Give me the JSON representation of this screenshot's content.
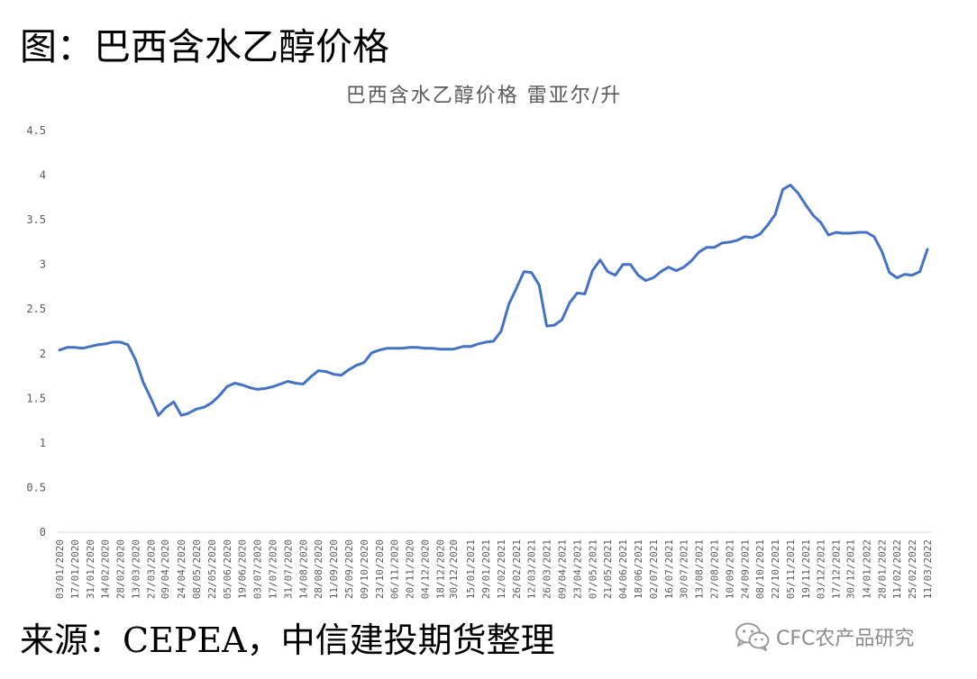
{
  "heading": "图：巴西含水乙醇价格",
  "source": "来源：CEPEA，中信建投期货整理",
  "watermark": {
    "text": "CFC农产品研究",
    "icon": "wechat-icon"
  },
  "colors": {
    "line": "#4472C4",
    "axis": "#D9D9D9",
    "text": "#595959"
  },
  "chart_data": {
    "type": "line",
    "title": "巴西含水乙醇价格 雷亚尔/升",
    "ylim": [
      0,
      4.5
    ],
    "yticks": [
      "0",
      "0.5",
      "1",
      "1.5",
      "2",
      "2.5",
      "3",
      "3.5",
      "4",
      "4.5"
    ],
    "grid": false,
    "xticks": [
      "03/01/2020",
      "17/01/2020",
      "31/01/2020",
      "14/02/2020",
      "28/02/2020",
      "13/03/2020",
      "27/03/2020",
      "09/04/2020",
      "24/04/2020",
      "08/05/2020",
      "22/05/2020",
      "05/06/2020",
      "19/06/2020",
      "03/07/2020",
      "17/07/2020",
      "31/07/2020",
      "14/08/2020",
      "28/08/2020",
      "11/09/2020",
      "25/09/2020",
      "09/10/2020",
      "23/10/2020",
      "06/11/2020",
      "20/11/2020",
      "04/12/2020",
      "18/12/2020",
      "30/12/2020",
      "15/01/2021",
      "29/01/2021",
      "12/02/2021",
      "26/02/2021",
      "12/03/2021",
      "26/03/2021",
      "09/04/2021",
      "23/04/2021",
      "07/05/2021",
      "21/05/2021",
      "04/06/2021",
      "18/06/2021",
      "02/07/2021",
      "16/07/2021",
      "30/07/2021",
      "13/08/2021",
      "27/08/2021",
      "10/09/2021",
      "24/09/2021",
      "08/10/2021",
      "22/10/2021",
      "05/11/2021",
      "19/11/2021",
      "03/12/2021",
      "17/12/2021",
      "30/12/2021",
      "14/01/2022",
      "28/01/2022",
      "11/02/2022",
      "25/02/2022",
      "11/03/2022"
    ],
    "series": [
      {
        "x": [
          "03/01/2020",
          "10/01/2020",
          "17/01/2020",
          "24/01/2020",
          "31/01/2020",
          "07/02/2020",
          "14/02/2020",
          "21/02/2020",
          "28/02/2020",
          "06/03/2020",
          "13/03/2020",
          "20/03/2020",
          "27/03/2020",
          "03/04/2020",
          "09/04/2020",
          "17/04/2020",
          "24/04/2020",
          "30/04/2020",
          "08/05/2020",
          "15/05/2020",
          "22/05/2020",
          "29/05/2020",
          "05/06/2020",
          "12/06/2020",
          "19/06/2020",
          "26/06/2020",
          "03/07/2020",
          "10/07/2020",
          "17/07/2020",
          "24/07/2020",
          "31/07/2020",
          "07/08/2020",
          "14/08/2020",
          "21/08/2020",
          "28/08/2020",
          "04/09/2020",
          "11/09/2020",
          "18/09/2020",
          "25/09/2020",
          "02/10/2020",
          "09/10/2020",
          "16/10/2020",
          "23/10/2020",
          "30/10/2020",
          "06/11/2020",
          "13/11/2020",
          "20/11/2020",
          "27/11/2020",
          "04/12/2020",
          "11/12/2020",
          "18/12/2020",
          "24/12/2020",
          "30/12/2020",
          "08/01/2021",
          "15/01/2021",
          "22/01/2021",
          "29/01/2021",
          "05/02/2021",
          "12/02/2021",
          "19/02/2021",
          "26/02/2021",
          "05/03/2021",
          "12/03/2021",
          "19/03/2021",
          "26/03/2021",
          "02/04/2021",
          "09/04/2021",
          "16/04/2021",
          "23/04/2021",
          "30/04/2021",
          "07/05/2021",
          "14/05/2021",
          "21/05/2021",
          "28/05/2021",
          "04/06/2021",
          "11/06/2021",
          "18/06/2021",
          "25/06/2021",
          "02/07/2021",
          "09/07/2021",
          "16/07/2021",
          "23/07/2021",
          "30/07/2021",
          "06/08/2021",
          "13/08/2021",
          "20/08/2021",
          "27/08/2021",
          "03/09/2021",
          "10/09/2021",
          "17/09/2021",
          "24/09/2021",
          "01/10/2021",
          "08/10/2021",
          "15/10/2021",
          "22/10/2021",
          "29/10/2021",
          "05/11/2021",
          "12/11/2021",
          "19/11/2021",
          "26/11/2021",
          "03/12/2021",
          "10/12/2021",
          "17/12/2021",
          "23/12/2021",
          "30/12/2021",
          "07/01/2022",
          "14/01/2022",
          "21/01/2022",
          "28/01/2022",
          "04/02/2022",
          "11/02/2022",
          "18/02/2022",
          "25/02/2022",
          "04/03/2022",
          "11/03/2022"
        ],
        "values": [
          2.04,
          2.07,
          2.07,
          2.06,
          2.08,
          2.1,
          2.11,
          2.13,
          2.13,
          2.1,
          1.93,
          1.68,
          1.5,
          1.31,
          1.39,
          1.46,
          1.31,
          1.33,
          1.38,
          1.4,
          1.45,
          1.53,
          1.63,
          1.67,
          1.65,
          1.62,
          1.6,
          1.61,
          1.63,
          1.66,
          1.69,
          1.67,
          1.66,
          1.74,
          1.81,
          1.8,
          1.77,
          1.76,
          1.82,
          1.87,
          1.9,
          2.01,
          2.04,
          2.06,
          2.06,
          2.06,
          2.07,
          2.07,
          2.06,
          2.06,
          2.05,
          2.05,
          2.05,
          2.08,
          2.08,
          2.11,
          2.13,
          2.14,
          2.25,
          2.55,
          2.73,
          2.92,
          2.91,
          2.77,
          2.31,
          2.32,
          2.38,
          2.57,
          2.68,
          2.67,
          2.93,
          3.05,
          2.92,
          2.88,
          3.0,
          3.0,
          2.88,
          2.82,
          2.85,
          2.92,
          2.97,
          2.93,
          2.97,
          3.04,
          3.14,
          3.19,
          3.19,
          3.24,
          3.25,
          3.27,
          3.31,
          3.3,
          3.34,
          3.44,
          3.56,
          3.84,
          3.89,
          3.8,
          3.67,
          3.55,
          3.47,
          3.33,
          3.36,
          3.35,
          3.35,
          3.36,
          3.36,
          3.31,
          3.15,
          2.91,
          2.85,
          2.89,
          2.88,
          2.92,
          3.17
        ]
      }
    ]
  }
}
